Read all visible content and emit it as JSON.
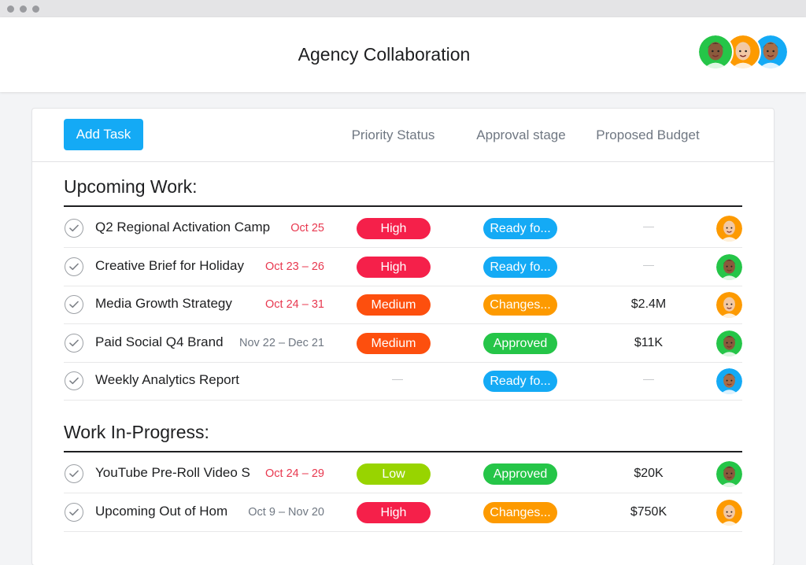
{
  "window": {
    "title": "Agency Collaboration"
  },
  "header": {
    "members": [
      {
        "name": "avatar-member-1",
        "skin": "#8b5a3c",
        "hair": "#1b1b1b",
        "bg": "#25c548"
      },
      {
        "name": "avatar-member-2",
        "skin": "#f2c8a4",
        "hair": "#e9d9a8",
        "bg": "#fd9a00"
      },
      {
        "name": "avatar-member-3",
        "skin": "#a86d48",
        "hair": "#222222",
        "bg": "#14aaf5"
      }
    ]
  },
  "toolbar": {
    "add_task_label": "Add Task",
    "columns": [
      "Priority Status",
      "Approval stage",
      "Proposed Budget"
    ]
  },
  "colors": {
    "accent": "#14aaf5",
    "high": "#f5204a",
    "medium": "#fd4f0e",
    "low": "#98d400",
    "ready": "#14aaf5",
    "changes": "#fd9a00",
    "approved": "#25c548",
    "date_red": "#e8384f",
    "date_gray": "#6f7782"
  },
  "sections": [
    {
      "title": "Upcoming Work:",
      "tasks": [
        {
          "name": "Q2 Regional Activation Camp",
          "date": "Oct 25",
          "date_color": "red",
          "priority": "High",
          "approval": "Ready fo...",
          "budget": "",
          "assignee": 2
        },
        {
          "name": "Creative Brief for Holiday",
          "date": "Oct 23 – 26",
          "date_color": "red",
          "priority": "High",
          "approval": "Ready fo...",
          "budget": "",
          "assignee": 1
        },
        {
          "name": "Media Growth Strategy",
          "date": "Oct 24 – 31",
          "date_color": "red",
          "priority": "Medium",
          "approval": "Changes...",
          "budget": "$2.4M",
          "assignee": 2
        },
        {
          "name": "Paid Social Q4 Brand",
          "date": "Nov 22 – Dec 21",
          "date_color": "gray",
          "priority": "Medium",
          "approval": "Approved",
          "budget": "$11K",
          "assignee": 1
        },
        {
          "name": "Weekly Analytics Report",
          "date": "",
          "date_color": "gray",
          "priority": "",
          "approval": "Ready fo...",
          "budget": "",
          "assignee": 3
        }
      ]
    },
    {
      "title": "Work In-Progress:",
      "tasks": [
        {
          "name": "YouTube Pre-Roll Video S",
          "date": "Oct 24 – 29",
          "date_color": "red",
          "priority": "Low",
          "approval": "Approved",
          "budget": "$20K",
          "assignee": 1
        },
        {
          "name": "Upcoming Out of Hom",
          "date": "Oct 9 – Nov 20",
          "date_color": "gray",
          "priority": "High",
          "approval": "Changes...",
          "budget": "$750K",
          "assignee": 2
        }
      ]
    }
  ]
}
